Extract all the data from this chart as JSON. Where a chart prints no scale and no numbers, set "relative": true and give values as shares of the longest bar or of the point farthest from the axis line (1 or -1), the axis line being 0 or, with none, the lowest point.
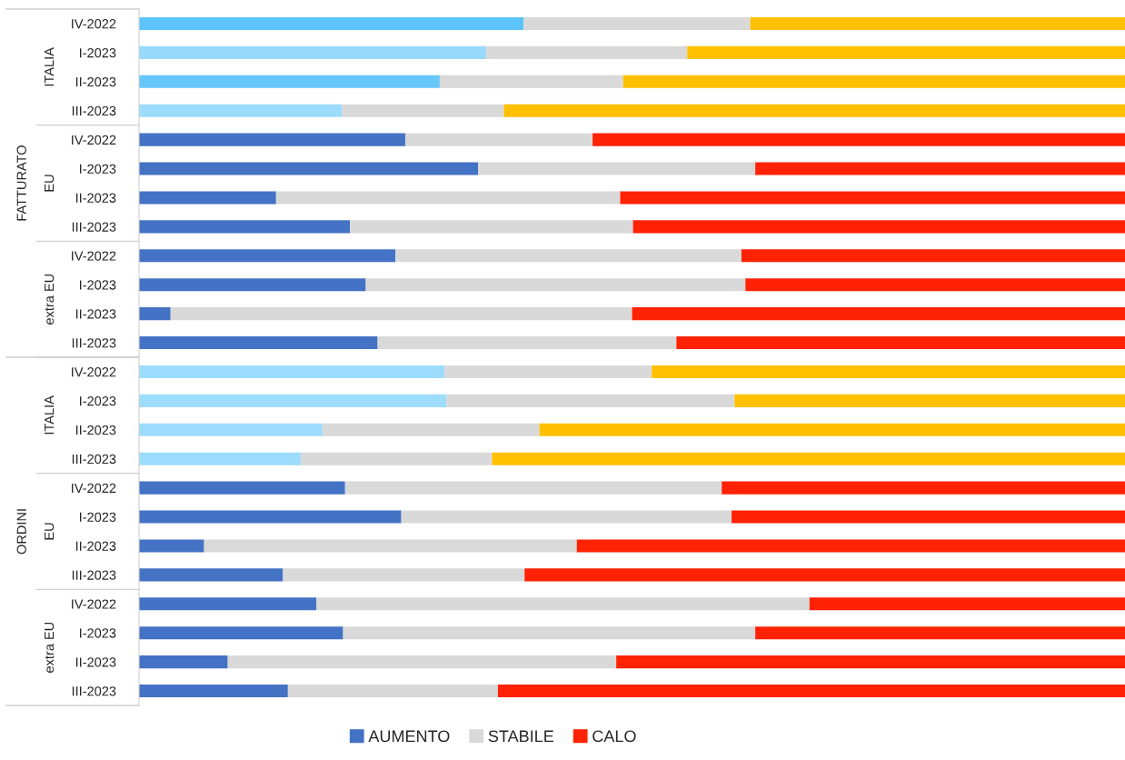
{
  "chart_data": {
    "type": "bar",
    "orientation": "horizontal",
    "stacked": true,
    "relative": true,
    "legend": "bottom",
    "grid": false,
    "categories": [
      "IV-2022",
      "I-2023",
      "II-2023",
      "III-2023",
      "IV-2022",
      "I-2023",
      "II-2023",
      "III-2023",
      "IV-2022",
      "I-2023",
      "II-2023",
      "III-2023",
      "IV-2022",
      "I-2023",
      "II-2023",
      "III-2023",
      "IV-2022",
      "I-2023",
      "II-2023",
      "III-2023",
      "IV-2022",
      "I-2023",
      "II-2023",
      "III-2023"
    ],
    "annotations": [
      "ITALIA",
      "EU",
      "extra EU",
      "ITALIA",
      "EU",
      "extra EU",
      "FATTURATO",
      "ORDINI"
    ],
    "series": [
      {
        "name": "AUMENTO",
        "color": "#4472c4",
        "colors": [
          "#5cc4fa",
          "#99d9fb",
          "#66c8fa",
          "#9ddcfc",
          "#4472c4",
          "#4472c4",
          "#4472c4",
          "#4472c4",
          "#4472c4",
          "#4472c4",
          "#4472c4",
          "#4472c4",
          "#9ddcfc",
          "#9ddcfc",
          "#9ddcfc",
          "#9ddcfc",
          "#4472c4",
          "#4472c4",
          "#4472c4",
          "#4472c4",
          "#4472c4",
          "#4472c4",
          "#4472c4",
          "#4472c4"
        ],
        "values": [
          0.39,
          0.352,
          0.305,
          0.206,
          0.27,
          0.344,
          0.139,
          0.214,
          0.26,
          0.23,
          0.032,
          0.242,
          0.31,
          0.312,
          0.186,
          0.164,
          0.209,
          0.266,
          0.066,
          0.146,
          0.18,
          0.207,
          0.09,
          0.151
        ]
      },
      {
        "name": "STABILE",
        "color": "#d9d9d9",
        "values": [
          0.23,
          0.204,
          0.186,
          0.164,
          0.19,
          0.281,
          0.349,
          0.287,
          0.351,
          0.385,
          0.468,
          0.303,
          0.21,
          0.292,
          0.22,
          0.194,
          0.382,
          0.335,
          0.378,
          0.245,
          0.5,
          0.418,
          0.394,
          0.213
        ]
      },
      {
        "name": "CALO",
        "color": "#ff2205",
        "colors": [
          "#ffc000",
          "#ffc000",
          "#ffc000",
          "#ffc000",
          "#ff2205",
          "#ff2205",
          "#ff2205",
          "#ff2205",
          "#ff2205",
          "#ff2205",
          "#ff2205",
          "#ff2205",
          "#ffc000",
          "#ffc000",
          "#ffc000",
          "#ffc000",
          "#ff2205",
          "#ff2205",
          "#ff2205",
          "#ff2205",
          "#ff2205",
          "#ff2205",
          "#ff2205",
          "#ff2205"
        ],
        "values": [
          0.38,
          0.444,
          0.509,
          0.63,
          0.54,
          0.375,
          0.512,
          0.499,
          0.389,
          0.385,
          0.5,
          0.455,
          0.48,
          0.396,
          0.594,
          0.642,
          0.409,
          0.399,
          0.556,
          0.609,
          0.32,
          0.375,
          0.516,
          0.636
        ]
      }
    ]
  }
}
